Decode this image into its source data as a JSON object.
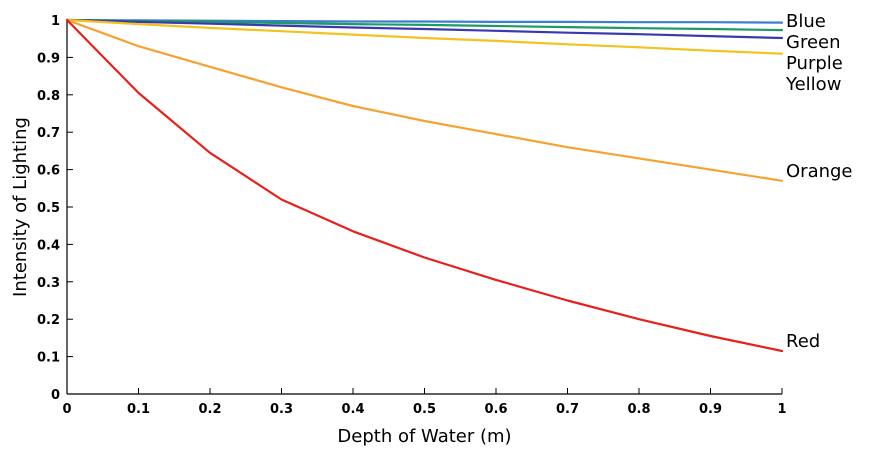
{
  "chart_data": {
    "type": "line",
    "title": "",
    "xlabel": "Depth of Water (m)",
    "ylabel": "Intensity of Lighting",
    "xlim": [
      0,
      1
    ],
    "ylim": [
      0,
      1
    ],
    "grid": false,
    "legend": "inline labels at right end of lines",
    "x_ticks": [
      0,
      0.1,
      0.2,
      0.3,
      0.4,
      0.5,
      0.6,
      0.7,
      0.8,
      0.9,
      1
    ],
    "x_tick_labels": [
      "0",
      "0.1",
      "0.2",
      "0.3",
      "0.4",
      "0.5",
      "0.6",
      "0.7",
      "0.8",
      "0.9",
      "1"
    ],
    "y_ticks": [
      0,
      0.1,
      0.2,
      0.3,
      0.4,
      0.5,
      0.6,
      0.7,
      0.8,
      0.9,
      1
    ],
    "y_tick_labels": [
      "0",
      "0.1",
      "0.2",
      "0.3",
      "0.4",
      "0.5",
      "0.6",
      "0.7",
      "0.8",
      "0.9",
      "1"
    ],
    "x": [
      0,
      0.1,
      0.2,
      0.3,
      0.4,
      0.5,
      0.6,
      0.7,
      0.8,
      0.9,
      1
    ],
    "series": [
      {
        "name": "Blue",
        "color": "#3a7fd0",
        "values": [
          1.0,
          0.999,
          0.998,
          0.997,
          0.996,
          0.996,
          0.995,
          0.995,
          0.994,
          0.994,
          0.993
        ]
      },
      {
        "name": "Green",
        "color": "#1f9a63",
        "values": [
          1.0,
          0.997,
          0.995,
          0.992,
          0.989,
          0.987,
          0.984,
          0.981,
          0.978,
          0.976,
          0.973
        ]
      },
      {
        "name": "Purple",
        "color": "#3a3ab0",
        "values": [
          1.0,
          0.995,
          0.99,
          0.985,
          0.98,
          0.976,
          0.971,
          0.966,
          0.962,
          0.957,
          0.952
        ]
      },
      {
        "name": "Yellow",
        "color": "#f2c21e",
        "values": [
          1.0,
          0.989,
          0.979,
          0.97,
          0.961,
          0.952,
          0.944,
          0.935,
          0.927,
          0.918,
          0.91
        ]
      },
      {
        "name": "Orange",
        "color": "#f7a230",
        "values": [
          1.0,
          0.93,
          0.875,
          0.82,
          0.77,
          0.73,
          0.695,
          0.66,
          0.63,
          0.6,
          0.57
        ]
      },
      {
        "name": "Red",
        "color": "#e8201c",
        "values": [
          1.0,
          0.805,
          0.645,
          0.52,
          0.435,
          0.365,
          0.305,
          0.25,
          0.2,
          0.155,
          0.115
        ]
      }
    ]
  }
}
